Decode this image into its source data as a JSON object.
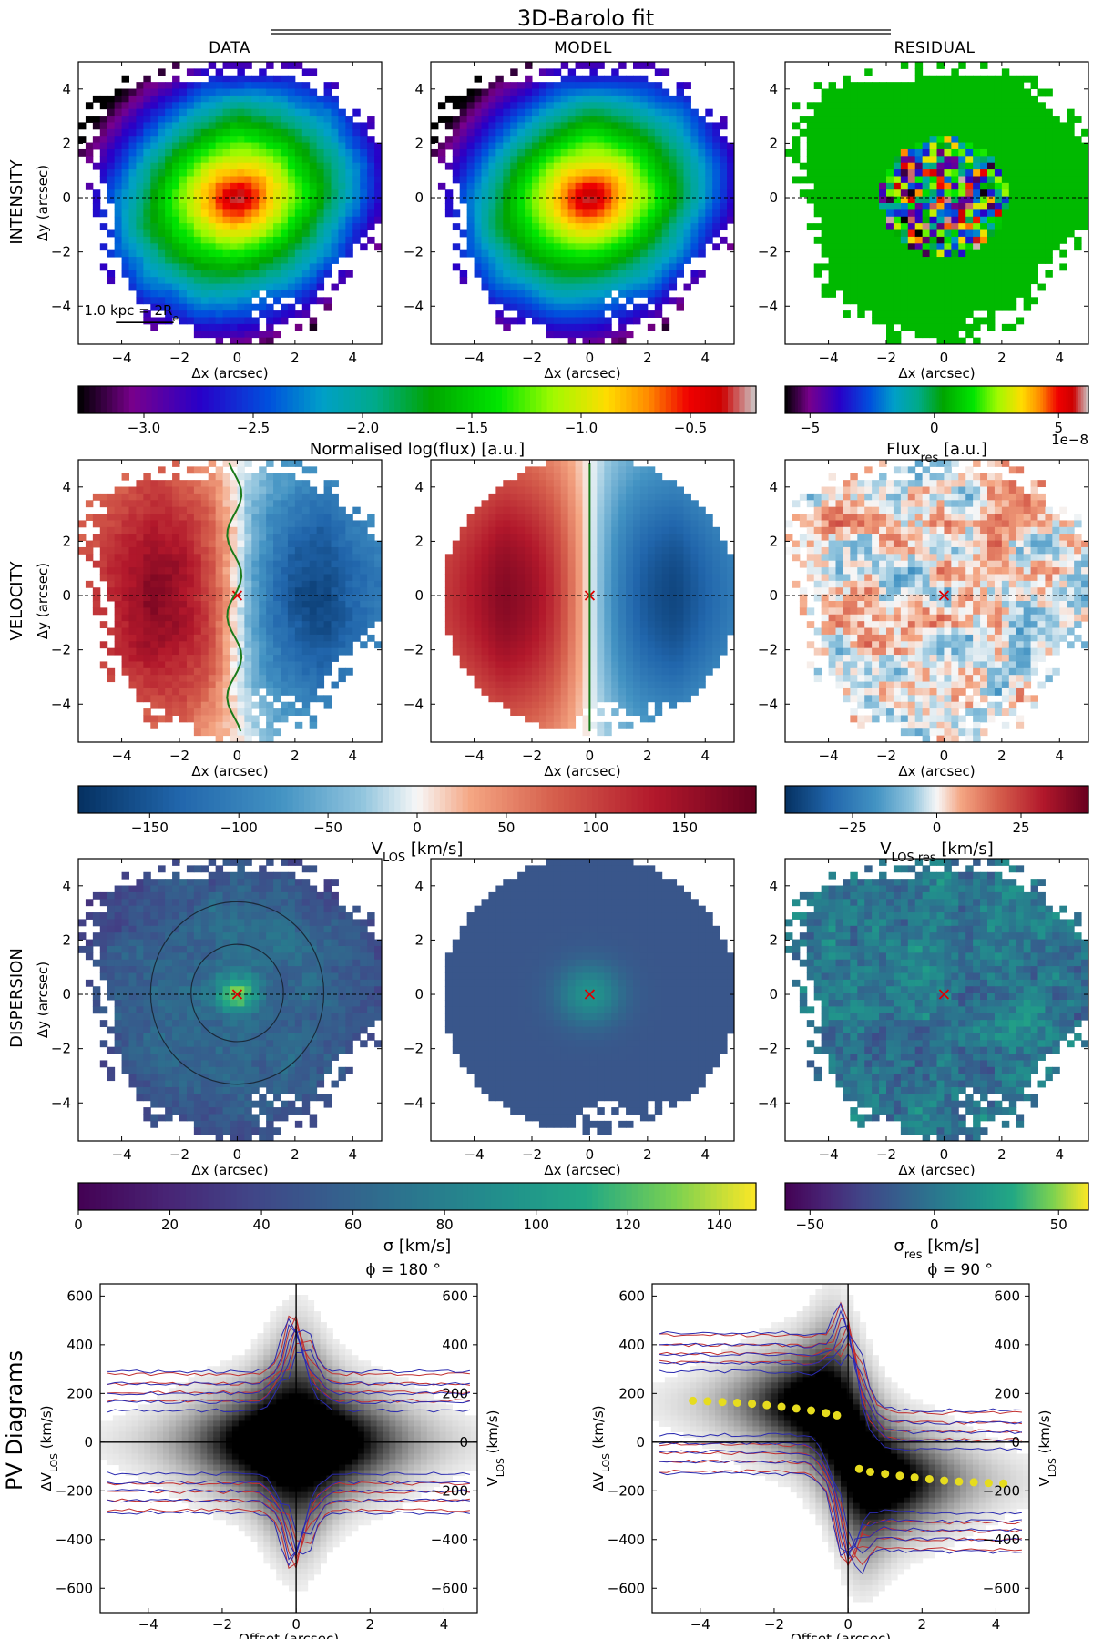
{
  "figure": {
    "title": "3D-Barolo fit",
    "columns": [
      "DATA",
      "MODEL",
      "RESIDUAL"
    ],
    "rows": [
      "INTENSITY",
      "VELOCITY",
      "DISPERSION"
    ],
    "pv_title": "PV Diagrams"
  },
  "chart_data": [
    {
      "type": "heatmap",
      "id": "intensity",
      "row": "INTENSITY",
      "panels": [
        "DATA",
        "MODEL",
        "RESIDUAL"
      ],
      "xlabel": "Δx (arcsec)",
      "ylabel": "Δy (arcsec)",
      "xlim": [
        -5.5,
        5
      ],
      "ylim": [
        -5.4,
        5
      ],
      "xticks": [
        -4,
        -2,
        0,
        2,
        4
      ],
      "yticks": [
        -4,
        -2,
        0,
        2,
        4
      ],
      "scalebar_label": "1.0 kpc = 2R",
      "scalebar_sub": "e",
      "colorbar_main": {
        "label": "Normalised log(flux) [a.u.]",
        "range": [
          -3.3,
          -0.2
        ],
        "ticks": [
          -3.0,
          -2.5,
          -2.0,
          -1.5,
          -1.0,
          -0.5
        ],
        "tick_labels": [
          "−3.0",
          "−2.5",
          "−2.0",
          "−1.5",
          "−1.0",
          "−0.5"
        ],
        "colormap": "nipy_spectral"
      },
      "colorbar_res": {
        "label": "Flux",
        "label_sub": "res",
        "label_suffix": " [a.u.]",
        "range": [
          -6,
          6.2
        ],
        "ticks": [
          -5,
          0,
          5
        ],
        "tick_labels": [
          "−5",
          "0",
          "5"
        ],
        "exponent": "1e−8",
        "colormap": "nipy_spectral"
      }
    },
    {
      "type": "heatmap",
      "id": "velocity",
      "row": "VELOCITY",
      "panels": [
        "DATA",
        "MODEL",
        "RESIDUAL"
      ],
      "xlabel": "Δx (arcsec)",
      "ylabel": "Δy (arcsec)",
      "xlim": [
        -5.5,
        5
      ],
      "ylim": [
        -5.4,
        5
      ],
      "xticks": [
        -4,
        -2,
        0,
        2,
        4
      ],
      "yticks": [
        -4,
        -2,
        0,
        2,
        4
      ],
      "colorbar_main": {
        "label": "V",
        "label_sub": "LOS",
        "label_suffix": " [km/s]",
        "range": [
          -190,
          190
        ],
        "ticks": [
          -150,
          -100,
          -50,
          0,
          50,
          100,
          150
        ],
        "tick_labels": [
          "−150",
          "−100",
          "−50",
          "0",
          "50",
          "100",
          "150"
        ],
        "colormap": "RdBu_r"
      },
      "colorbar_res": {
        "label": "V",
        "label_sub": "LOS res",
        "label_suffix": " [km/s]",
        "range": [
          -45,
          45
        ],
        "ticks": [
          -25,
          0,
          25
        ],
        "tick_labels": [
          "−25",
          "0",
          "25"
        ],
        "colormap": "RdBu_r"
      }
    },
    {
      "type": "heatmap",
      "id": "dispersion",
      "row": "DISPERSION",
      "panels": [
        "DATA",
        "MODEL",
        "RESIDUAL"
      ],
      "xlabel": "Δx (arcsec)",
      "ylabel": "Δy (arcsec)",
      "xlim": [
        -5.5,
        5
      ],
      "ylim": [
        -5.4,
        5
      ],
      "xticks": [
        -4,
        -2,
        0,
        2,
        4
      ],
      "yticks": [
        -4,
        -2,
        0,
        2,
        4
      ],
      "colorbar_main": {
        "label": "σ [km/s]",
        "range": [
          0,
          148
        ],
        "ticks": [
          0,
          20,
          40,
          60,
          80,
          100,
          120,
          140
        ],
        "tick_labels": [
          "0",
          "20",
          "40",
          "60",
          "80",
          "100",
          "120",
          "140"
        ],
        "colormap": "viridis"
      },
      "colorbar_res": {
        "label": "σ",
        "label_sub": "res",
        "label_suffix": " [km/s]",
        "range": [
          -60,
          62
        ],
        "ticks": [
          -50,
          0,
          50
        ],
        "tick_labels": [
          "−50",
          "0",
          "50"
        ],
        "colormap": "viridis"
      }
    },
    {
      "type": "pv",
      "id": "pv-180",
      "title": "ϕ = 180 °",
      "xlabel": "Offset (arcsec)",
      "ylabel": "ΔV",
      "ylabel_sub": "LOS",
      "ylabel_suffix": " (km/s)",
      "ylabel_right": "V",
      "ylabel_right_sub": "LOS",
      "ylabel_right_suffix": " (km/s)",
      "xlim": [
        -5.3,
        4.9
      ],
      "ylim": [
        -700,
        650
      ],
      "xticks": [
        -4,
        -2,
        0,
        2,
        4
      ],
      "yticks": [
        -600,
        -400,
        -200,
        0,
        200,
        400,
        600
      ],
      "ytick_labels": [
        "−600",
        "−400",
        "−200",
        "0",
        "200",
        "400",
        "600"
      ],
      "rotation_points": []
    },
    {
      "type": "pv",
      "id": "pv-90",
      "title": "ϕ = 90 °",
      "xlabel": "Offset (arcsec)",
      "ylabel": "ΔV",
      "ylabel_sub": "LOS",
      "ylabel_suffix": " (km/s)",
      "ylabel_right": "V",
      "ylabel_right_sub": "LOS",
      "ylabel_right_suffix": " (km/s)",
      "xlim": [
        -5.3,
        4.9
      ],
      "ylim": [
        -700,
        650
      ],
      "xticks": [
        -4,
        -2,
        0,
        2,
        4
      ],
      "yticks": [
        -600,
        -400,
        -200,
        0,
        200,
        400,
        600
      ],
      "ytick_labels": [
        "−600",
        "−400",
        "−200",
        "0",
        "200",
        "400",
        "600"
      ],
      "rotation_points": [
        {
          "x": -4.2,
          "y": 170
        },
        {
          "x": -3.8,
          "y": 168
        },
        {
          "x": -3.4,
          "y": 165
        },
        {
          "x": -3.0,
          "y": 162
        },
        {
          "x": -2.6,
          "y": 158
        },
        {
          "x": -2.2,
          "y": 152
        },
        {
          "x": -1.8,
          "y": 145
        },
        {
          "x": -1.4,
          "y": 138
        },
        {
          "x": -1.0,
          "y": 130
        },
        {
          "x": -0.6,
          "y": 120
        },
        {
          "x": -0.3,
          "y": 110
        },
        {
          "x": 0.3,
          "y": -110
        },
        {
          "x": 0.6,
          "y": -122
        },
        {
          "x": 1.0,
          "y": -130
        },
        {
          "x": 1.4,
          "y": -138
        },
        {
          "x": 1.8,
          "y": -145
        },
        {
          "x": 2.2,
          "y": -152
        },
        {
          "x": 2.6,
          "y": -158
        },
        {
          "x": 3.0,
          "y": -162
        },
        {
          "x": 3.4,
          "y": -165
        },
        {
          "x": 3.8,
          "y": -168
        },
        {
          "x": 4.2,
          "y": -170
        }
      ]
    }
  ]
}
